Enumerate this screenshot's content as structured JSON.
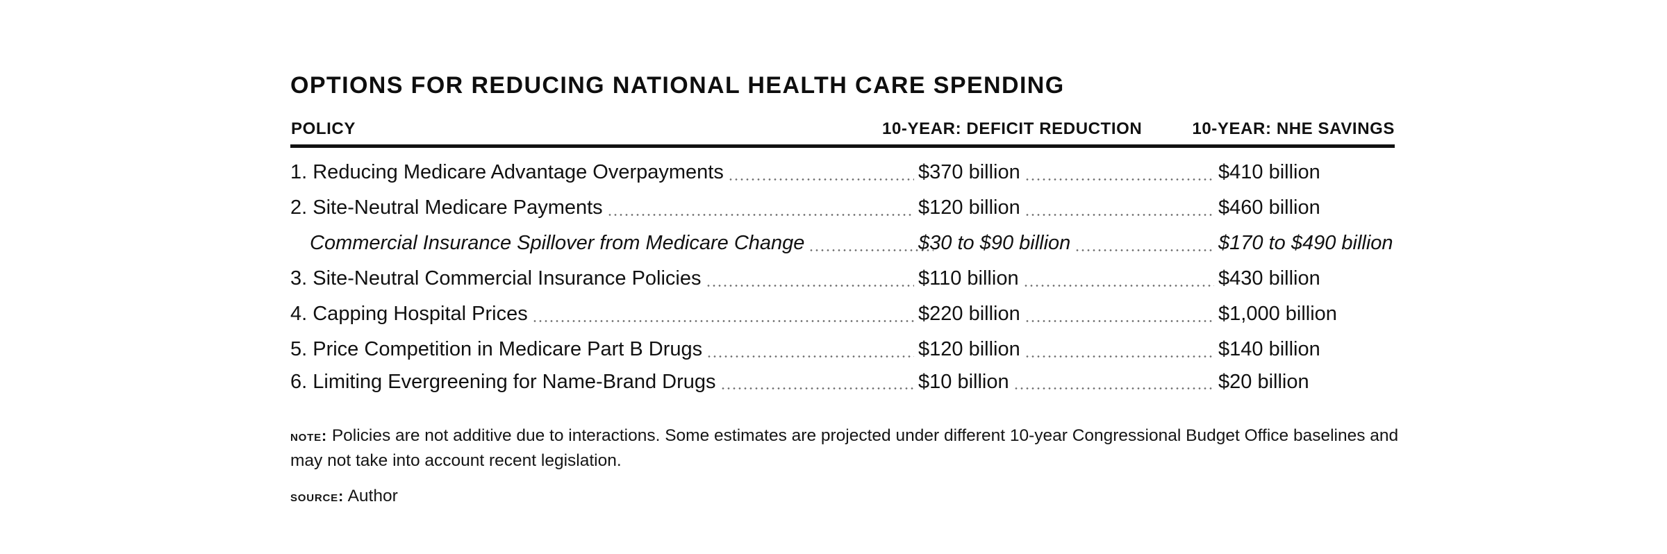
{
  "title": "OPTIONS FOR REDUCING NATIONAL HEALTH CARE SPENDING",
  "columns": {
    "policy": "POLICY",
    "deficit": "10-YEAR: DEFICIT REDUCTION",
    "nhe": "10-YEAR: NHE SAVINGS"
  },
  "rows": [
    {
      "policy": "1. Reducing Medicare Advantage Overpayments",
      "deficit": "$370 billion",
      "nhe": "$410 billion"
    },
    {
      "policy": "2. Site-Neutral Medicare Payments",
      "deficit": "$120 billion",
      "nhe": "$460 billion"
    },
    {
      "policy": "Commercial Insurance Spillover from Medicare Change",
      "deficit": "$30 to $90 billion",
      "nhe": "$170 to $490 billion"
    },
    {
      "policy": "3. Site-Neutral Commercial Insurance Policies",
      "deficit": "$110 billion",
      "nhe": "$430 billion"
    },
    {
      "policy": "4. Capping Hospital Prices",
      "deficit": "$220 billion",
      "nhe": "$1,000 billion"
    },
    {
      "policy": "5. Price Competition in Medicare Part B Drugs",
      "deficit": "$120 billion",
      "nhe": "$140 billion"
    },
    {
      "policy": "6. Limiting Evergreening for Name-Brand Drugs",
      "deficit": "$10 billion",
      "nhe": "$20 billion"
    }
  ],
  "note": {
    "label": "NOTE:",
    "text": "Policies are not additive due to interactions. Some estimates are projected under different 10-year Congressional Budget Office baselines and may not take into account recent legislation."
  },
  "source": {
    "label": "SOURCE:",
    "text": "Author"
  }
}
